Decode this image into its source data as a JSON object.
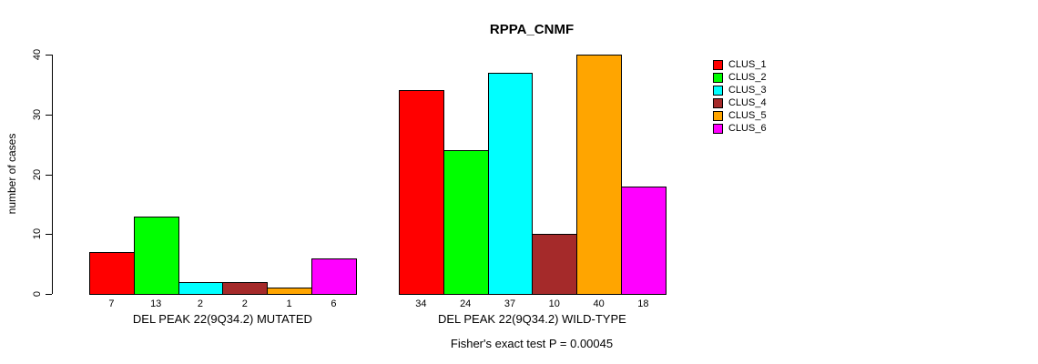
{
  "chart_data": {
    "type": "bar",
    "title": "RPPA_CNMF",
    "ylabel": "number of cases",
    "ylim": [
      0,
      40
    ],
    "y_ticks": [
      0,
      10,
      20,
      30,
      40
    ],
    "grid": false,
    "legend_position": "right",
    "groups": [
      {
        "label": "DEL PEAK 22(9Q34.2) MUTATED",
        "values": [
          7,
          13,
          2,
          2,
          1,
          6
        ],
        "bar_value_labels": [
          "7",
          "13",
          "2",
          "2",
          "1",
          "6"
        ]
      },
      {
        "label": "DEL PEAK 22(9Q34.2) WILD-TYPE",
        "values": [
          34,
          24,
          37,
          10,
          40,
          18
        ],
        "bar_value_labels": [
          "34",
          "24",
          "37",
          "10",
          "40",
          "18"
        ]
      }
    ],
    "series": [
      {
        "name": "CLUS_1",
        "color": "#FF0000"
      },
      {
        "name": "CLUS_2",
        "color": "#00FF00"
      },
      {
        "name": "CLUS_3",
        "color": "#00FFFF"
      },
      {
        "name": "CLUS_4",
        "color": "#A52A2A"
      },
      {
        "name": "CLUS_5",
        "color": "#FFA500"
      },
      {
        "name": "CLUS_6",
        "color": "#FF00FF"
      }
    ],
    "annotation": "Fisher's exact test P = 0.00045"
  }
}
